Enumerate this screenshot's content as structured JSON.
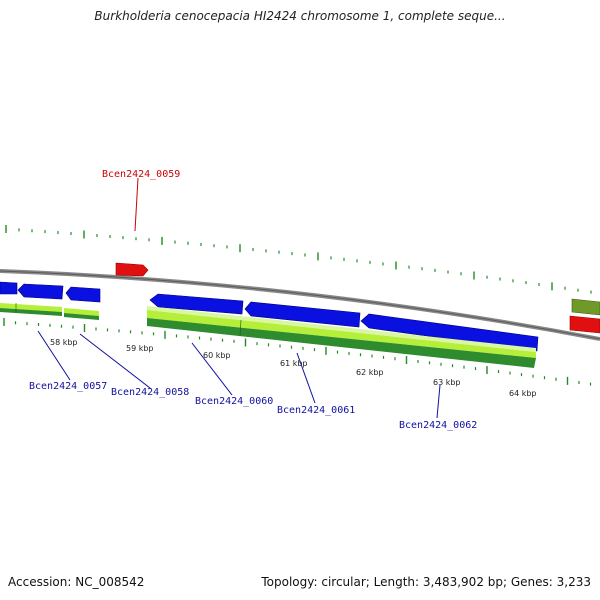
{
  "title": "Burkholderia cenocepacia HI2424 chromosome 1, complete seque...",
  "footer": {
    "accession": "Accession: NC_008542",
    "stats": "Topology: circular; Length: 3,483,902 bp; Genes: 3,233"
  },
  "kbp_ticks": [
    "58 kbp",
    "59 kbp",
    "60 kbp",
    "61 kbp",
    "62 kbp",
    "63 kbp",
    "64 kbp"
  ],
  "gene_labels": {
    "g0059": "Bcen2424_0059",
    "g0057": "Bcen2424_0057",
    "g0058": "Bcen2424_0058",
    "g0060": "Bcen2424_0060",
    "g0061": "Bcen2424_0061",
    "g0062": "Bcen2424_0062"
  },
  "colors": {
    "backbone": "#8a8a8a",
    "forward_gene": "#e01010",
    "reverse_gene": "#0a10e0",
    "cds_light": "#b5ef3a",
    "cds_dark": "#2e8b2e",
    "olive_feature": "#6f9a2a",
    "label_reverse": "#1010a0",
    "label_forward": "#cc0000",
    "tick": "#228b22"
  }
}
